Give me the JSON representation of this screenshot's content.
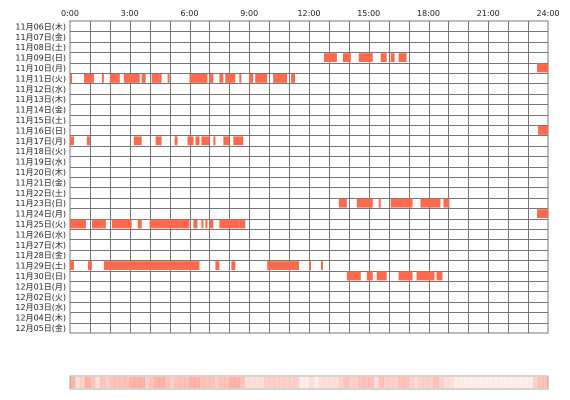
{
  "chart_data": {
    "type": "heatmap",
    "title": "",
    "xlabel": "",
    "ylabel": "",
    "x_ticks": [
      "0:00",
      "3:00",
      "6:00",
      "9:00",
      "12:00",
      "15:00",
      "18:00",
      "21:00",
      "24:00"
    ],
    "x_range_hours": [
      0,
      24
    ],
    "bar_color": "#ff6a4d",
    "grid_color": "#777777",
    "grid": true,
    "rows": [
      {
        "label": "11月06日(木)",
        "intervals": []
      },
      {
        "label": "11月07日(金)",
        "intervals": []
      },
      {
        "label": "11月08日(土)",
        "intervals": []
      },
      {
        "label": "11月09日(日)",
        "intervals": [
          [
            12.75,
            13.4
          ],
          [
            13.7,
            14.1
          ],
          [
            14.5,
            15.2
          ],
          [
            15.6,
            15.9
          ],
          [
            16.1,
            16.3
          ],
          [
            16.5,
            16.9
          ]
        ]
      },
      {
        "label": "11月10日(月)",
        "intervals": [
          [
            23.45,
            24.0
          ]
        ]
      },
      {
        "label": "11月11日(火)",
        "intervals": [
          [
            0.0,
            0.1
          ],
          [
            0.7,
            1.2
          ],
          [
            1.6,
            1.7
          ],
          [
            2.0,
            2.5
          ],
          [
            2.7,
            3.5
          ],
          [
            3.6,
            3.8
          ],
          [
            4.1,
            4.5
          ],
          [
            4.5,
            4.6
          ],
          [
            4.9,
            5.0
          ],
          [
            6.0,
            6.9
          ],
          [
            7.0,
            7.2
          ],
          [
            7.5,
            7.7
          ],
          [
            7.8,
            8.3
          ],
          [
            8.5,
            8.6
          ],
          [
            9.0,
            9.2
          ],
          [
            9.3,
            9.9
          ],
          [
            10.2,
            10.9
          ],
          [
            11.1,
            11.3
          ]
        ]
      },
      {
        "label": "11月12日(水)",
        "intervals": []
      },
      {
        "label": "11月13日(木)",
        "intervals": []
      },
      {
        "label": "11月14日(金)",
        "intervals": []
      },
      {
        "label": "11月15日(土)",
        "intervals": []
      },
      {
        "label": "11月16日(日)",
        "intervals": [
          [
            23.5,
            24.0
          ]
        ]
      },
      {
        "label": "11月17日(月)",
        "intervals": [
          [
            0.0,
            0.2
          ],
          [
            0.85,
            1.0
          ],
          [
            3.2,
            3.6
          ],
          [
            4.3,
            4.6
          ],
          [
            5.25,
            5.4
          ],
          [
            5.9,
            6.2
          ],
          [
            6.3,
            6.5
          ],
          [
            6.6,
            7.0
          ],
          [
            7.2,
            7.3
          ],
          [
            7.7,
            8.0
          ],
          [
            8.2,
            8.7
          ]
        ]
      },
      {
        "label": "11月18日(火)",
        "intervals": []
      },
      {
        "label": "11月19日(水)",
        "intervals": []
      },
      {
        "label": "11月20日(木)",
        "intervals": []
      },
      {
        "label": "11月21日(金)",
        "intervals": []
      },
      {
        "label": "11月22日(土)",
        "intervals": []
      },
      {
        "label": "11月23日(日)",
        "intervals": [
          [
            13.5,
            13.9
          ],
          [
            14.4,
            15.2
          ],
          [
            15.5,
            15.6
          ],
          [
            16.1,
            17.2
          ],
          [
            17.6,
            18.6
          ],
          [
            18.75,
            19.05
          ]
        ]
      },
      {
        "label": "11月24日(月)",
        "intervals": [
          [
            23.45,
            24.0
          ]
        ]
      },
      {
        "label": "11月25日(火)",
        "intervals": [
          [
            0.0,
            0.8
          ],
          [
            1.1,
            1.8
          ],
          [
            2.1,
            3.1
          ],
          [
            3.4,
            3.6
          ],
          [
            4.0,
            5.6
          ],
          [
            5.6,
            6.0
          ],
          [
            6.2,
            6.4
          ],
          [
            6.6,
            6.7
          ],
          [
            6.8,
            6.9
          ],
          [
            7.0,
            7.2
          ],
          [
            7.5,
            8.5
          ],
          [
            8.5,
            8.8
          ]
        ]
      },
      {
        "label": "11月26日(水)",
        "intervals": []
      },
      {
        "label": "11月27日(木)",
        "intervals": []
      },
      {
        "label": "11月28日(金)",
        "intervals": []
      },
      {
        "label": "11月29日(土)",
        "intervals": [
          [
            0.0,
            0.2
          ],
          [
            0.9,
            1.1
          ],
          [
            1.7,
            6.5
          ],
          [
            7.3,
            7.5
          ],
          [
            8.1,
            8.3
          ],
          [
            9.9,
            11.5
          ],
          [
            12.0,
            12.1
          ],
          [
            12.6,
            12.7
          ]
        ]
      },
      {
        "label": "11月30日(日)",
        "intervals": [
          [
            13.9,
            14.6
          ],
          [
            14.9,
            15.2
          ],
          [
            15.4,
            15.9
          ],
          [
            16.5,
            17.2
          ],
          [
            17.4,
            18.3
          ],
          [
            18.4,
            18.7
          ]
        ]
      },
      {
        "label": "12月01日(月)",
        "intervals": []
      },
      {
        "label": "12月02日(火)",
        "intervals": []
      },
      {
        "label": "12月03日(水)",
        "intervals": []
      },
      {
        "label": "12月04日(木)",
        "intervals": []
      },
      {
        "label": "12月05日(金)",
        "intervals": []
      }
    ]
  }
}
